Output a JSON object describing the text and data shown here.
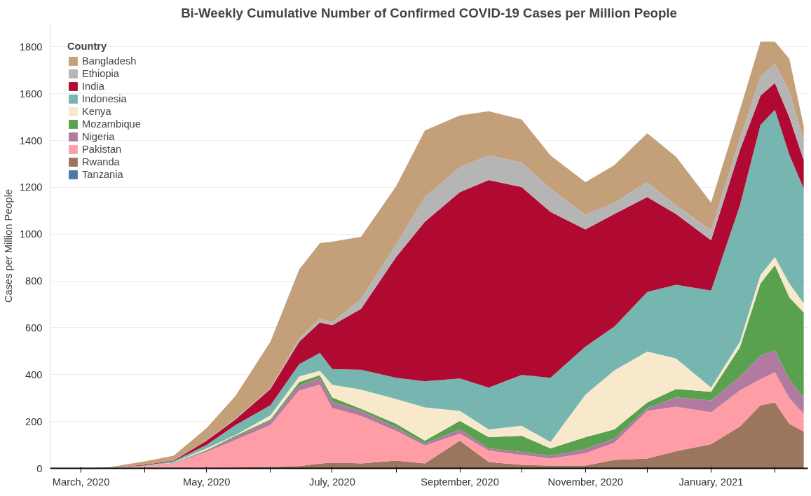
{
  "chart_data": {
    "type": "area",
    "stacked": true,
    "title": "Bi-Weekly Cumulative Number of Confirmed COVID-19 Cases per Million People",
    "ylabel": "Cases per Million People",
    "legend_title": "Country",
    "legend": "top left",
    "grid": "y",
    "x": [
      "2020-03-01",
      "2020-03-15",
      "2020-04-01",
      "2020-04-15",
      "2020-05-01",
      "2020-05-15",
      "2020-06-01",
      "2020-06-15",
      "2020-06-25",
      "2020-07-01",
      "2020-07-15",
      "2020-08-01",
      "2020-08-15",
      "2020-09-01",
      "2020-09-15",
      "2020-10-01",
      "2020-10-15",
      "2020-11-01",
      "2020-11-15",
      "2020-12-01",
      "2020-12-15",
      "2021-01-01",
      "2021-01-15",
      "2021-01-25",
      "2021-02-01",
      "2021-02-08",
      "2021-02-15"
    ],
    "xlim": [
      "2020-02-15",
      "2021-02-17"
    ],
    "xticks": [
      {
        "value": "2020-03-01",
        "label": "March, 2020"
      },
      {
        "value": "2020-04-01",
        "label": null
      },
      {
        "value": "2020-05-01",
        "label": "May, 2020"
      },
      {
        "value": "2020-06-01",
        "label": null
      },
      {
        "value": "2020-07-01",
        "label": "July, 2020"
      },
      {
        "value": "2020-08-01",
        "label": null
      },
      {
        "value": "2020-09-01",
        "label": "September, 2020"
      },
      {
        "value": "2020-10-01",
        "label": null
      },
      {
        "value": "2020-11-01",
        "label": "November, 2020"
      },
      {
        "value": "2020-12-01",
        "label": null
      },
      {
        "value": "2021-01-01",
        "label": "January, 2021"
      },
      {
        "value": "2021-02-01",
        "label": null
      }
    ],
    "ylim": [
      0,
      1900
    ],
    "yticks": [
      0,
      200,
      400,
      600,
      800,
      1000,
      1200,
      1400,
      1600,
      1800
    ],
    "series": [
      {
        "name": "Tanzania",
        "color": "#4e79a7",
        "values": [
          null,
          null,
          null,
          null,
          null,
          null,
          null,
          null,
          null,
          null,
          null,
          null,
          null,
          null,
          null,
          null,
          null,
          null,
          null,
          null,
          null,
          null,
          null,
          null,
          null,
          null,
          null
        ]
      },
      {
        "name": "Rwanda",
        "color": "#9c755f",
        "values": [
          0,
          0,
          0,
          0,
          3,
          4,
          5,
          10,
          20,
          25,
          21,
          33,
          21,
          118,
          27,
          15,
          12,
          12,
          36,
          42,
          73,
          103,
          179,
          269,
          281,
          190,
          157
        ]
      },
      {
        "name": "Pakistan",
        "color": "#ff9da7",
        "values": [
          0,
          1,
          8,
          20,
          67,
          117,
          180,
          323,
          337,
          232,
          203,
          127,
          76,
          30,
          49,
          42,
          30,
          52,
          73,
          203,
          190,
          136,
          154,
          112,
          130,
          110,
          76
        ]
      },
      {
        "name": "Nigeria",
        "color": "#b07aa1",
        "values": [
          0,
          0,
          1,
          2,
          4,
          12,
          18,
          21,
          30,
          27,
          21,
          15,
          9,
          18,
          9,
          13,
          12,
          18,
          18,
          12,
          40,
          51,
          60,
          100,
          94,
          80,
          70
        ]
      },
      {
        "name": "Mozambique",
        "color": "#59a14f",
        "values": [
          0,
          0,
          0,
          1,
          4,
          6,
          6,
          15,
          11,
          19,
          9,
          16,
          12,
          37,
          48,
          69,
          31,
          51,
          39,
          24,
          36,
          37,
          124,
          309,
          363,
          350,
          363
        ]
      },
      {
        "name": "Kenya",
        "color": "#f8e8cc",
        "values": [
          0,
          0,
          1,
          2,
          7,
          3,
          18,
          24,
          19,
          54,
          82,
          105,
          142,
          42,
          33,
          43,
          27,
          182,
          252,
          218,
          130,
          18,
          24,
          36,
          34,
          60,
          39
        ]
      },
      {
        "name": "Indonesia",
        "color": "#77b6b0",
        "values": [
          0,
          1,
          3,
          5,
          15,
          43,
          42,
          52,
          76,
          67,
          85,
          91,
          112,
          139,
          179,
          217,
          275,
          205,
          187,
          254,
          315,
          414,
          582,
          641,
          629,
          550,
          490
        ]
      },
      {
        "name": "India",
        "color": "#b00a32",
        "values": [
          0,
          0,
          3,
          3,
          18,
          24,
          70,
          96,
          130,
          187,
          260,
          515,
          681,
          796,
          886,
          802,
          708,
          500,
          481,
          406,
          302,
          215,
          236,
          125,
          115,
          160,
          121
        ]
      },
      {
        "name": "Ethiopia",
        "color": "#b5b5b5",
        "values": [
          0,
          0,
          0,
          0,
          2,
          3,
          3,
          14,
          18,
          12,
          42,
          54,
          106,
          106,
          106,
          106,
          100,
          63,
          49,
          63,
          37,
          43,
          48,
          81,
          82,
          110,
          84
        ]
      },
      {
        "name": "Bangladesh",
        "color": "#c4a07a",
        "values": [
          0,
          3,
          14,
          21,
          52,
          97,
          199,
          295,
          321,
          345,
          266,
          248,
          284,
          221,
          188,
          183,
          142,
          139,
          160,
          209,
          208,
          118,
          124,
          149,
          94,
          140,
          60
        ]
      }
    ]
  }
}
